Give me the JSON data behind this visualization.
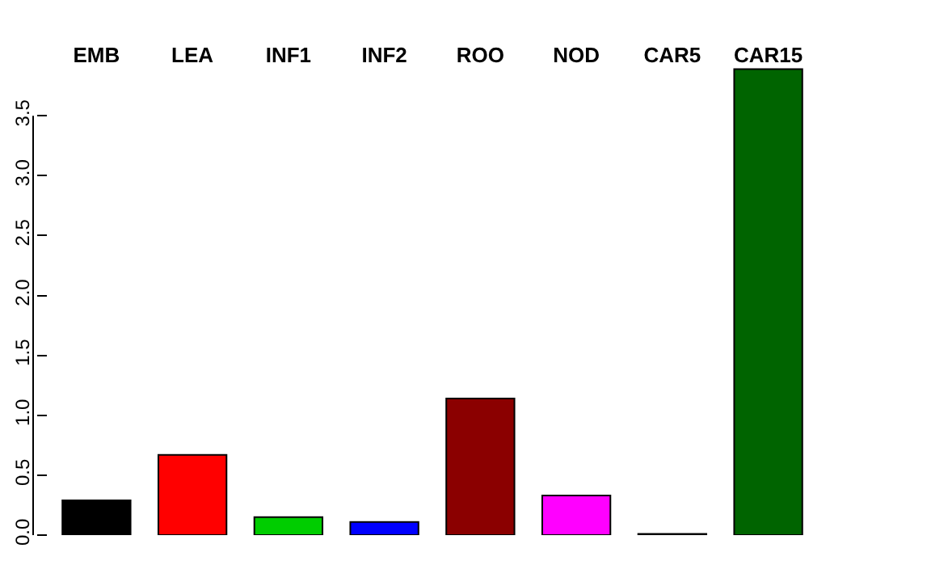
{
  "chart_data": {
    "type": "bar",
    "categories": [
      "EMB",
      "LEA",
      "INF1",
      "INF2",
      "ROO",
      "NOD",
      "CAR5",
      "CAR15"
    ],
    "values": [
      0.29,
      0.67,
      0.15,
      0.11,
      1.14,
      0.33,
      0.01,
      3.89
    ],
    "colors": [
      "#000000",
      "#ff0000",
      "#00cd00",
      "#0000ff",
      "#8b0000",
      "#ff00ff",
      "#000000",
      "#006400"
    ],
    "ylim": [
      0,
      3.9
    ],
    "yticks": [
      {
        "value": 0,
        "label": "0.0"
      },
      {
        "value": 0.5,
        "label": "0.5"
      },
      {
        "value": 1,
        "label": "1.0"
      },
      {
        "value": 1.5,
        "label": "1.5"
      },
      {
        "value": 2,
        "label": "2.0"
      },
      {
        "value": 2.5,
        "label": "2.5"
      },
      {
        "value": 3,
        "label": "3.0"
      },
      {
        "value": 3.5,
        "label": "3.5"
      }
    ],
    "grid": false
  }
}
